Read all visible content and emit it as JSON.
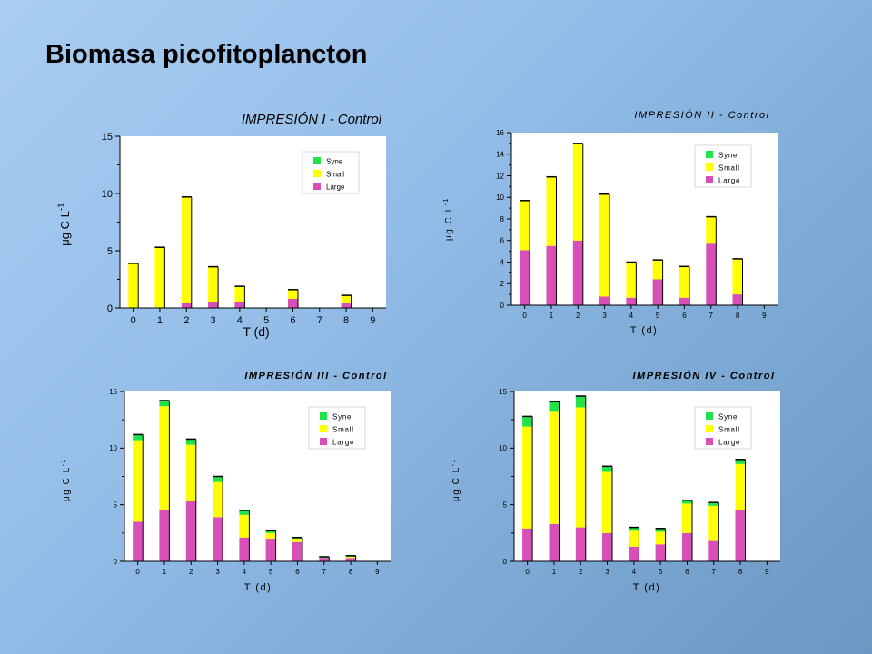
{
  "slide": {
    "title": "Biomasa picofitoplancton"
  },
  "colors": {
    "syne": "#22e24a",
    "small": "#ffff00",
    "large": "#d94fb8",
    "plot_bg": "#ffffff",
    "outline": "#000000"
  },
  "chart_data": [
    {
      "type": "bar",
      "stacked": true,
      "title": "IMPRESIÓN I - Control",
      "xlabel": "T (d)",
      "ylabel": "μg C L-1",
      "ylim": [
        0,
        15
      ],
      "yticks": [
        0,
        5,
        10,
        15
      ],
      "x_ticks": [
        0,
        1,
        2,
        3,
        4,
        5,
        6,
        7,
        8,
        9
      ],
      "categories": [
        0,
        1,
        2,
        3,
        4,
        6,
        8
      ],
      "series": [
        {
          "name": "Large",
          "values": [
            0,
            0,
            0.4,
            0.5,
            0.5,
            0.8,
            0.4
          ]
        },
        {
          "name": "Small",
          "values": [
            3.9,
            5.3,
            9.3,
            3.1,
            1.4,
            0.8,
            0.7
          ]
        },
        {
          "name": "Syne",
          "values": [
            0,
            0,
            0,
            0,
            0,
            0,
            0
          ]
        }
      ],
      "legend": [
        "Syne",
        "Small",
        "Large"
      ],
      "legend_position": "top-right",
      "grid": false
    },
    {
      "type": "bar",
      "stacked": true,
      "title": "IMPRESIÓN II - Control",
      "xlabel": "T (d)",
      "ylabel": "μg C L-1",
      "ylim": [
        0,
        16
      ],
      "yticks": [
        0,
        2,
        4,
        6,
        8,
        10,
        12,
        14,
        16
      ],
      "x_ticks": [
        0,
        1,
        2,
        3,
        4,
        5,
        6,
        7,
        8,
        9
      ],
      "categories": [
        0,
        1,
        2,
        3,
        4,
        5,
        6,
        7,
        8
      ],
      "series": [
        {
          "name": "Large",
          "values": [
            5.1,
            5.5,
            6.0,
            0.8,
            0.7,
            2.4,
            0.7,
            5.7,
            1.0
          ]
        },
        {
          "name": "Small",
          "values": [
            4.6,
            6.4,
            9.0,
            9.5,
            3.3,
            1.8,
            2.9,
            2.5,
            3.3
          ]
        },
        {
          "name": "Syne",
          "values": [
            0,
            0,
            0,
            0,
            0,
            0,
            0,
            0,
            0
          ]
        }
      ],
      "legend": [
        "Syne",
        "Small",
        "Large"
      ],
      "legend_position": "top-right",
      "grid": false
    },
    {
      "type": "bar",
      "stacked": true,
      "title": "IMPRESIÓN III - Control",
      "xlabel": "T (d)",
      "ylabel": "μg C L-1",
      "ylim": [
        0,
        15
      ],
      "yticks": [
        0,
        5,
        10,
        15
      ],
      "x_ticks": [
        0,
        1,
        2,
        3,
        4,
        5,
        6,
        7,
        8,
        9
      ],
      "categories": [
        0,
        1,
        2,
        3,
        4,
        5,
        6,
        7,
        8
      ],
      "series": [
        {
          "name": "Large",
          "values": [
            3.5,
            4.5,
            5.3,
            3.9,
            2.1,
            2.0,
            1.7,
            0.3,
            0.3
          ]
        },
        {
          "name": "Small",
          "values": [
            7.2,
            9.2,
            5.0,
            3.1,
            2.0,
            0.5,
            0.3,
            0,
            0.1
          ]
        },
        {
          "name": "Syne",
          "values": [
            0.5,
            0.5,
            0.5,
            0.5,
            0.4,
            0.2,
            0.1,
            0.1,
            0.1
          ]
        }
      ],
      "legend": [
        "Syne",
        "Small",
        "Large"
      ],
      "legend_position": "top-right",
      "grid": false
    },
    {
      "type": "bar",
      "stacked": true,
      "title": "IMPRESIÓN IV - Control",
      "xlabel": "T (d)",
      "ylabel": "μg C L-1",
      "ylim": [
        0,
        15
      ],
      "yticks": [
        0,
        5,
        10,
        15
      ],
      "x_ticks": [
        0,
        1,
        2,
        3,
        4,
        5,
        6,
        7,
        8,
        9
      ],
      "categories": [
        0,
        1,
        2,
        3,
        4,
        5,
        6,
        7,
        8
      ],
      "series": [
        {
          "name": "Large",
          "values": [
            2.9,
            3.3,
            3.0,
            2.5,
            1.3,
            1.5,
            2.5,
            1.8,
            4.5
          ]
        },
        {
          "name": "Small",
          "values": [
            9.0,
            9.9,
            10.6,
            5.4,
            1.4,
            1.1,
            2.6,
            3.1,
            4.1
          ]
        },
        {
          "name": "Syne",
          "values": [
            0.9,
            0.9,
            1.0,
            0.5,
            0.3,
            0.3,
            0.3,
            0.3,
            0.4
          ]
        }
      ],
      "legend": [
        "Syne",
        "Small",
        "Large"
      ],
      "legend_position": "top-right",
      "grid": false
    }
  ]
}
